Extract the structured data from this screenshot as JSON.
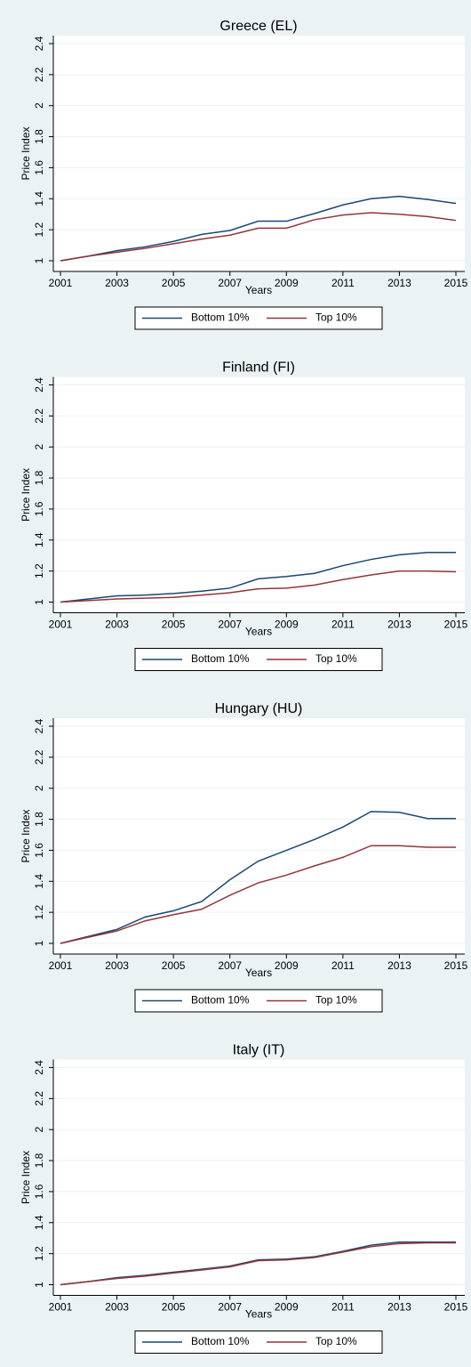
{
  "chart_data": [
    {
      "type": "line",
      "title": "Greece (EL)",
      "x_label": "Years",
      "y_label": "Price Index",
      "x": [
        2001,
        2002,
        2003,
        2004,
        2005,
        2006,
        2007,
        2008,
        2009,
        2010,
        2011,
        2012,
        2013,
        2014,
        2015
      ],
      "series": [
        {
          "name": "Bottom 10%",
          "color": "#1a476f",
          "values": [
            1,
            1.03,
            1.065,
            1.09,
            1.125,
            1.17,
            1.195,
            1.255,
            1.255,
            1.305,
            1.36,
            1.4,
            1.415,
            1.395,
            1.37
          ]
        },
        {
          "name": "Top 10%",
          "color": "#90353b",
          "values": [
            1,
            1.03,
            1.055,
            1.08,
            1.11,
            1.14,
            1.165,
            1.21,
            1.21,
            1.265,
            1.295,
            1.31,
            1.3,
            1.285,
            1.26
          ]
        }
      ],
      "xlim": [
        2001,
        2015
      ],
      "xticks": [
        2001,
        2003,
        2005,
        2007,
        2009,
        2011,
        2013,
        2015
      ],
      "ylim": [
        1,
        2.4
      ],
      "yticks": [
        1,
        1.2,
        1.4,
        1.6,
        1.8,
        2,
        2.2,
        2.4
      ],
      "grid": true,
      "legend": "bottom"
    },
    {
      "type": "line",
      "title": "Finland (FI)",
      "x_label": "Years",
      "y_label": "Price Index",
      "x": [
        2001,
        2002,
        2003,
        2004,
        2005,
        2006,
        2007,
        2008,
        2009,
        2010,
        2011,
        2012,
        2013,
        2014,
        2015
      ],
      "series": [
        {
          "name": "Bottom 10%",
          "color": "#1a476f",
          "values": [
            1,
            1.02,
            1.04,
            1.045,
            1.055,
            1.07,
            1.09,
            1.15,
            1.165,
            1.185,
            1.235,
            1.275,
            1.305,
            1.32,
            1.32
          ]
        },
        {
          "name": "Top 10%",
          "color": "#90353b",
          "values": [
            1,
            1.01,
            1.02,
            1.025,
            1.03,
            1.045,
            1.06,
            1.085,
            1.09,
            1.11,
            1.145,
            1.175,
            1.2,
            1.2,
            1.195
          ]
        }
      ],
      "xlim": [
        2001,
        2015
      ],
      "xticks": [
        2001,
        2003,
        2005,
        2007,
        2009,
        2011,
        2013,
        2015
      ],
      "ylim": [
        1,
        2.4
      ],
      "yticks": [
        1,
        1.2,
        1.4,
        1.6,
        1.8,
        2,
        2.2,
        2.4
      ],
      "grid": true,
      "legend": "bottom"
    },
    {
      "type": "line",
      "title": "Hungary (HU)",
      "x_label": "Years",
      "y_label": "Price Index",
      "x": [
        2001,
        2002,
        2003,
        2004,
        2005,
        2006,
        2007,
        2008,
        2009,
        2010,
        2011,
        2012,
        2013,
        2014,
        2015
      ],
      "series": [
        {
          "name": "Bottom 10%",
          "color": "#1a476f",
          "values": [
            1,
            1.045,
            1.09,
            1.17,
            1.21,
            1.27,
            1.41,
            1.53,
            1.6,
            1.67,
            1.75,
            1.85,
            1.845,
            1.805,
            1.805
          ]
        },
        {
          "name": "Top 10%",
          "color": "#90353b",
          "values": [
            1,
            1.04,
            1.08,
            1.145,
            1.185,
            1.22,
            1.31,
            1.39,
            1.44,
            1.5,
            1.555,
            1.63,
            1.63,
            1.62,
            1.62
          ]
        }
      ],
      "xlim": [
        2001,
        2015
      ],
      "xticks": [
        2001,
        2003,
        2005,
        2007,
        2009,
        2011,
        2013,
        2015
      ],
      "ylim": [
        1,
        2.4
      ],
      "yticks": [
        1,
        1.2,
        1.4,
        1.6,
        1.8,
        2,
        2.2,
        2.4
      ],
      "grid": true,
      "legend": "bottom"
    },
    {
      "type": "line",
      "title": "Italy (IT)",
      "x_label": "Years",
      "y_label": "Price Index",
      "x": [
        2001,
        2002,
        2003,
        2004,
        2005,
        2006,
        2007,
        2008,
        2009,
        2010,
        2011,
        2012,
        2013,
        2014,
        2015
      ],
      "series": [
        {
          "name": "Bottom 10%",
          "color": "#1a476f",
          "values": [
            1,
            1.02,
            1.045,
            1.06,
            1.08,
            1.1,
            1.12,
            1.16,
            1.165,
            1.18,
            1.215,
            1.255,
            1.275,
            1.275,
            1.275
          ]
        },
        {
          "name": "Top 10%",
          "color": "#90353b",
          "values": [
            1,
            1.02,
            1.04,
            1.055,
            1.075,
            1.095,
            1.115,
            1.155,
            1.16,
            1.175,
            1.21,
            1.245,
            1.265,
            1.27,
            1.27
          ]
        }
      ],
      "xlim": [
        2001,
        2015
      ],
      "xticks": [
        2001,
        2003,
        2005,
        2007,
        2009,
        2011,
        2013,
        2015
      ],
      "ylim": [
        1,
        2.4
      ],
      "yticks": [
        1,
        1.2,
        1.4,
        1.6,
        1.8,
        2,
        2.2,
        2.4
      ],
      "grid": true,
      "legend": "bottom"
    }
  ]
}
